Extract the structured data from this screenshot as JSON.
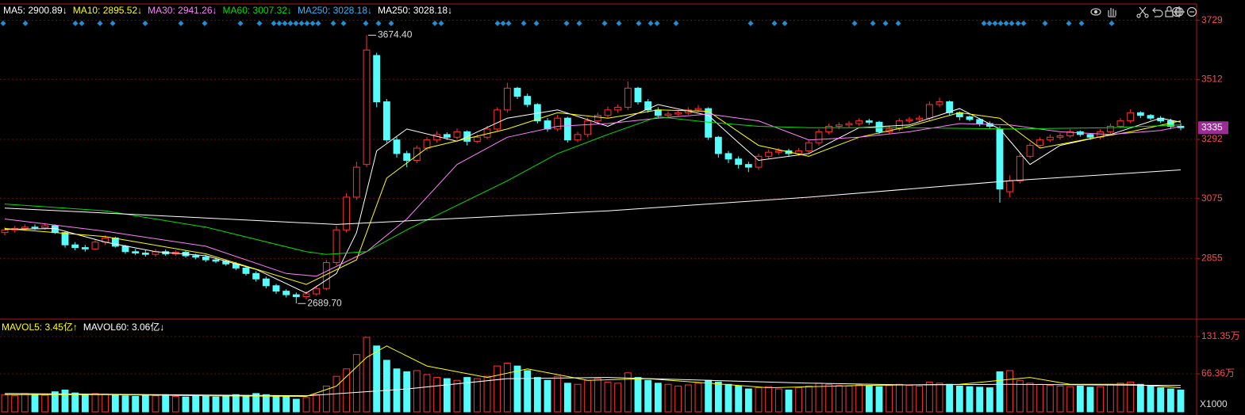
{
  "chart_data": {
    "type": "candlestick",
    "up_color": "#ff3232",
    "down_color": "#54fcfc",
    "grid": true,
    "ylim": [
      2641,
      3789
    ],
    "yticks": [
      2855,
      3075,
      3292,
      3512,
      3729
    ],
    "last_price": 3335,
    "last_price_color": "#9a2c96",
    "open": [
      2950,
      2960,
      2965,
      2970,
      2968,
      2975,
      2950,
      2905,
      2895,
      2890,
      2915,
      2930,
      2900,
      2880,
      2875,
      2870,
      2880,
      2872,
      2878,
      2865,
      2860,
      2850,
      2845,
      2835,
      2820,
      2800,
      2780,
      2755,
      2735,
      2722,
      2715,
      2725,
      2745,
      2840,
      2960,
      3080,
      3200,
      3600,
      3430,
      3290,
      3240,
      3215,
      3260,
      3290,
      3310,
      3300,
      3320,
      3285,
      3300,
      3330,
      3400,
      3480,
      3450,
      3420,
      3360,
      3330,
      3370,
      3290,
      3310,
      3360,
      3380,
      3400,
      3410,
      3480,
      3430,
      3400,
      3380,
      3385,
      3390,
      3400,
      3405,
      3300,
      3240,
      3220,
      3200,
      3190,
      3230,
      3245,
      3250,
      3240,
      3250,
      3280,
      3320,
      3340,
      3345,
      3350,
      3360,
      3355,
      3320,
      3330,
      3360,
      3365,
      3370,
      3420,
      3430,
      3390,
      3375,
      3365,
      3350,
      3330,
      3100,
      3140,
      3230,
      3270,
      3290,
      3300,
      3305,
      3320,
      3310,
      3300,
      3320,
      3340,
      3360,
      3390,
      3380,
      3370,
      3360,
      3340
    ],
    "high": [
      2970,
      2975,
      2980,
      2980,
      2985,
      2980,
      2955,
      2915,
      2905,
      2925,
      2940,
      2935,
      2905,
      2890,
      2885,
      2890,
      2888,
      2885,
      2885,
      2872,
      2868,
      2858,
      2852,
      2842,
      2825,
      2808,
      2788,
      2762,
      2742,
      2730,
      2735,
      2755,
      2850,
      2975,
      3095,
      3210,
      3674.4,
      3610,
      3440,
      3300,
      3250,
      3270,
      3300,
      3322,
      3318,
      3332,
      3325,
      3310,
      3342,
      3410,
      3500,
      3485,
      3460,
      3425,
      3370,
      3382,
      3375,
      3320,
      3372,
      3390,
      3412,
      3420,
      3505,
      3485,
      3440,
      3410,
      3395,
      3400,
      3410,
      3418,
      3410,
      3305,
      3250,
      3230,
      3210,
      3240,
      3255,
      3260,
      3258,
      3260,
      3290,
      3330,
      3350,
      3355,
      3360,
      3370,
      3368,
      3360,
      3340,
      3370,
      3375,
      3380,
      3432,
      3445,
      3435,
      3395,
      3380,
      3370,
      3358,
      3340,
      3160,
      3240,
      3280,
      3300,
      3310,
      3315,
      3330,
      3325,
      3315,
      3330,
      3350,
      3370,
      3402,
      3395,
      3385,
      3378,
      3368,
      3352
    ],
    "low": [
      2940,
      2950,
      2958,
      2960,
      2960,
      2945,
      2895,
      2885,
      2880,
      2885,
      2905,
      2895,
      2872,
      2868,
      2862,
      2862,
      2865,
      2865,
      2858,
      2852,
      2842,
      2838,
      2828,
      2812,
      2792,
      2770,
      2745,
      2725,
      2712,
      2689.7,
      2705,
      2718,
      2738,
      2830,
      2950,
      3070,
      3190,
      3410,
      3280,
      3225,
      3190,
      3205,
      3250,
      3280,
      3290,
      3292,
      3270,
      3278,
      3292,
      3320,
      3390,
      3440,
      3410,
      3350,
      3320,
      3322,
      3280,
      3282,
      3300,
      3350,
      3372,
      3390,
      3400,
      3420,
      3390,
      3370,
      3372,
      3378,
      3382,
      3392,
      3290,
      3225,
      3205,
      3185,
      3172,
      3180,
      3222,
      3235,
      3230,
      3232,
      3242,
      3270,
      3310,
      3330,
      3336,
      3342,
      3345,
      3312,
      3312,
      3322,
      3350,
      3358,
      3362,
      3410,
      3380,
      3362,
      3358,
      3340,
      3330,
      3060,
      3080,
      3130,
      3222,
      3262,
      3282,
      3292,
      3298,
      3302,
      3290,
      3292,
      3312,
      3332,
      3352,
      3370,
      3362,
      3352,
      3330,
      3325
    ],
    "close": [
      2960,
      2965,
      2970,
      2968,
      2975,
      2950,
      2905,
      2895,
      2890,
      2915,
      2930,
      2900,
      2880,
      2875,
      2870,
      2880,
      2872,
      2878,
      2865,
      2860,
      2850,
      2845,
      2835,
      2820,
      2800,
      2780,
      2755,
      2735,
      2722,
      2715,
      2725,
      2745,
      2840,
      2960,
      3080,
      3190,
      3620,
      3430,
      3290,
      3240,
      3215,
      3260,
      3290,
      3310,
      3300,
      3320,
      3285,
      3300,
      3330,
      3400,
      3480,
      3450,
      3420,
      3360,
      3330,
      3370,
      3290,
      3310,
      3360,
      3380,
      3400,
      3410,
      3480,
      3430,
      3400,
      3380,
      3385,
      3390,
      3400,
      3405,
      3300,
      3240,
      3220,
      3200,
      3190,
      3230,
      3245,
      3250,
      3240,
      3250,
      3280,
      3320,
      3340,
      3345,
      3350,
      3360,
      3355,
      3320,
      3330,
      3360,
      3365,
      3370,
      3420,
      3430,
      3390,
      3375,
      3365,
      3350,
      3340,
      3110,
      3140,
      3230,
      3270,
      3290,
      3300,
      3305,
      3320,
      3310,
      3300,
      3320,
      3340,
      3360,
      3390,
      3380,
      3370,
      3360,
      3340,
      3335
    ],
    "annotations": [
      {
        "text": "3674.40",
        "index": 36,
        "value": 3674.4
      },
      {
        "text": "2689.70",
        "index": 29,
        "value": 2689.7
      }
    ],
    "series": [
      {
        "name": "MA5: 2900.89↓",
        "color": "#ffffff",
        "x": [
          0,
          5,
          10,
          15,
          20,
          25,
          30,
          33,
          35,
          37,
          40,
          45,
          50,
          55,
          60,
          65,
          70,
          73,
          75,
          80,
          85,
          90,
          95,
          99,
          102,
          105,
          110,
          115,
          117
        ],
        "values": [
          2962,
          2965,
          2915,
          2880,
          2865,
          2815,
          2728,
          2800,
          2950,
          3250,
          3330,
          3285,
          3370,
          3400,
          3340,
          3420,
          3380,
          3280,
          3215,
          3240,
          3335,
          3345,
          3405,
          3330,
          3200,
          3270,
          3310,
          3370,
          3355
        ]
      },
      {
        "name": "MA10: 2895.52↓",
        "color": "#ffff00",
        "x": [
          0,
          10,
          20,
          30,
          35,
          38,
          42,
          50,
          55,
          60,
          65,
          70,
          75,
          80,
          85,
          90,
          95,
          99,
          103,
          108,
          112,
          117
        ],
        "values": [
          2965,
          2935,
          2872,
          2760,
          2850,
          3150,
          3260,
          3330,
          3390,
          3370,
          3400,
          3395,
          3270,
          3230,
          3300,
          3340,
          3390,
          3370,
          3260,
          3295,
          3320,
          3360
        ]
      },
      {
        "name": "MA30: 2941.26↓",
        "color": "#ff80ff",
        "x": [
          0,
          10,
          20,
          28,
          31,
          36,
          40,
          45,
          50,
          55,
          60,
          65,
          70,
          75,
          80,
          85,
          90,
          95,
          100,
          105,
          110,
          115,
          117
        ],
        "values": [
          3000,
          2955,
          2900,
          2800,
          2790,
          2880,
          3000,
          3200,
          3300,
          3340,
          3350,
          3370,
          3385,
          3360,
          3290,
          3300,
          3320,
          3350,
          3345,
          3320,
          3310,
          3325,
          3340
        ]
      },
      {
        "name": "MA60: 3007.32↓",
        "color": "#00e000",
        "x": [
          0,
          10,
          20,
          30,
          32,
          36,
          40,
          45,
          50,
          55,
          60,
          65,
          70,
          75,
          80,
          90,
          100,
          110,
          117
        ],
        "values": [
          3055,
          3030,
          2970,
          2880,
          2870,
          2880,
          2960,
          3050,
          3140,
          3240,
          3310,
          3375,
          3355,
          3340,
          3335,
          3335,
          3330,
          3335,
          3345
        ]
      },
      {
        "name": "MA250: 3028.18↓",
        "color": "#2bb8ff"
      },
      {
        "name": "MA250: 3028.18↓",
        "color": "#ffffff",
        "x": [
          0,
          33,
          60,
          80,
          100,
          117
        ],
        "values": [
          3040,
          2980,
          3030,
          3080,
          3140,
          3180
        ]
      }
    ],
    "volume": {
      "values": [
        30,
        28,
        32,
        30,
        29,
        35,
        38,
        33,
        30,
        32,
        31,
        30,
        28,
        27,
        29,
        28,
        30,
        27,
        26,
        28,
        27,
        26,
        29,
        30,
        28,
        32,
        30,
        28,
        27,
        22,
        25,
        30,
        45,
        62,
        75,
        100,
        130,
        115,
        90,
        75,
        70,
        72,
        65,
        60,
        58,
        55,
        60,
        58,
        62,
        80,
        85,
        80,
        72,
        60,
        55,
        62,
        50,
        48,
        55,
        58,
        52,
        50,
        68,
        60,
        55,
        50,
        48,
        45,
        47,
        50,
        55,
        52,
        48,
        45,
        40,
        42,
        44,
        40,
        38,
        42,
        45,
        50,
        48,
        46,
        45,
        47,
        45,
        44,
        46,
        48,
        46,
        45,
        52,
        50,
        48,
        45,
        44,
        43,
        42,
        70,
        72,
        55,
        50,
        48,
        46,
        45,
        44,
        45,
        43,
        44,
        48,
        50,
        52,
        48,
        45,
        42,
        40,
        38
      ],
      "ylim": [
        0,
        159
      ],
      "yticks": [
        {
          "value": 131.35,
          "label": "131.35万"
        },
        {
          "value": 66.36,
          "label": "66.36万"
        }
      ],
      "unit_label": "X1000",
      "series": [
        {
          "name": "MAVOL5: 3.45亿↑",
          "color": "#ffff00",
          "x": [
            0,
            10,
            20,
            30,
            33,
            36,
            38,
            42,
            48,
            52,
            58,
            64,
            70,
            76,
            85,
            95,
            99,
            102,
            106,
            112,
            117
          ],
          "values": [
            30,
            30,
            28,
            27,
            45,
            95,
            115,
            80,
            60,
            75,
            55,
            58,
            50,
            42,
            46,
            48,
            55,
            60,
            48,
            48,
            42
          ]
        },
        {
          "name": "MAVOL60: 3.06亿↓",
          "color": "#ffffff",
          "x": [
            0,
            30,
            40,
            50,
            60,
            70,
            80,
            90,
            100,
            117
          ],
          "values": [
            32,
            28,
            40,
            58,
            60,
            55,
            50,
            47,
            48,
            46
          ]
        }
      ]
    }
  }
}
